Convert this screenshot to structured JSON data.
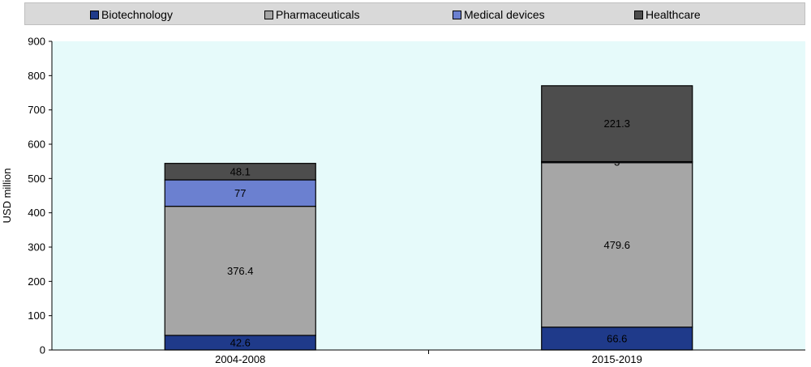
{
  "chart_data": {
    "type": "bar",
    "stacked": true,
    "categories": [
      "2004-2008",
      "2015-2019"
    ],
    "series": [
      {
        "name": "Biotechnology",
        "values": [
          42.6,
          66.6
        ],
        "labels": [
          "42.6",
          "66.6"
        ],
        "color": "#1f3a8a"
      },
      {
        "name": "Pharmaceuticals",
        "values": [
          376.4,
          479.6
        ],
        "labels": [
          "376.4",
          "479.6"
        ],
        "color": "#a6a6a6"
      },
      {
        "name": "Medical devices",
        "values": [
          77,
          3
        ],
        "labels": [
          "77",
          "3"
        ],
        "color": "#6b80d0"
      },
      {
        "name": "Healthcare",
        "values": [
          48.1,
          221.3
        ],
        "labels": [
          "48.1",
          "221.3"
        ],
        "color": "#4d4d4d"
      }
    ],
    "ylabel": "USD million",
    "xlabel": "",
    "ylim": [
      0,
      900
    ],
    "yticks": [
      "0",
      "100",
      "200",
      "300",
      "400",
      "500",
      "600",
      "700",
      "800",
      "900"
    ],
    "legend_position": "top",
    "plot_background": "#e6fafa",
    "grid": false
  }
}
